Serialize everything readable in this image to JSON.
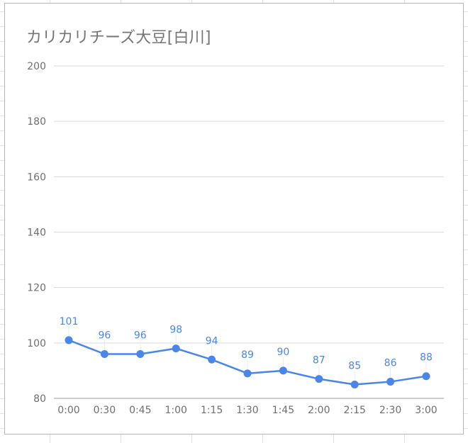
{
  "chart_data": {
    "type": "line",
    "title": "カリカリチーズ大豆[白川]",
    "xlabel": "",
    "ylabel": "",
    "categories": [
      "0:00",
      "0:30",
      "0:45",
      "1:00",
      "1:15",
      "1:30",
      "1:45",
      "2:00",
      "2:15",
      "2:30",
      "3:00"
    ],
    "series": [
      {
        "values": [
          101,
          96,
          96,
          98,
          94,
          89,
          90,
          87,
          85,
          86,
          88
        ]
      }
    ],
    "ylim": [
      80,
      200
    ],
    "yticks": [
      "80",
      "100",
      "120",
      "140",
      "160",
      "180",
      "200"
    ],
    "grid": true,
    "legend": "none",
    "line_color": "#4a86e8",
    "label_color": "#4a86e8",
    "grid_color": "#d9d9d9",
    "axis_color": "#9e9e9e",
    "tick_label_color": "#6f6f6f"
  }
}
